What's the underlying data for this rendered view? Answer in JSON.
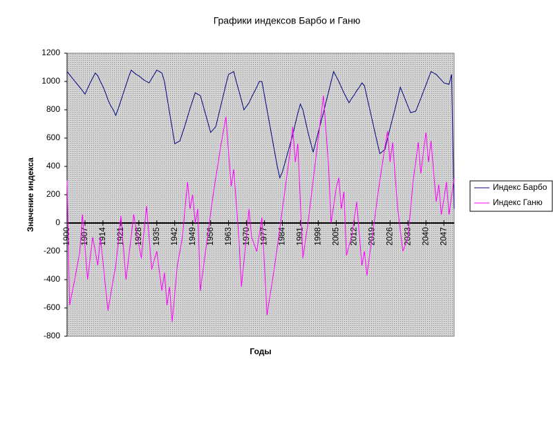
{
  "chart_data": {
    "type": "line",
    "title": "Графики индексов Барбо и Ганю",
    "x_label": "Годы",
    "y_label": "Значение индекса",
    "x": [
      1900,
      1901,
      1902,
      1903,
      1904,
      1905,
      1906,
      1907,
      1908,
      1909,
      1910,
      1911,
      1912,
      1913,
      1914,
      1915,
      1916,
      1917,
      1918,
      1919,
      1920,
      1921,
      1922,
      1923,
      1924,
      1925,
      1926,
      1927,
      1928,
      1929,
      1930,
      1931,
      1932,
      1933,
      1934,
      1935,
      1936,
      1937,
      1938,
      1939,
      1940,
      1941,
      1942,
      1943,
      1944,
      1945,
      1946,
      1947,
      1948,
      1949,
      1950,
      1951,
      1952,
      1953,
      1954,
      1955,
      1956,
      1957,
      1958,
      1959,
      1960,
      1961,
      1962,
      1963,
      1964,
      1965,
      1966,
      1967,
      1968,
      1969,
      1970,
      1971,
      1972,
      1973,
      1974,
      1975,
      1976,
      1977,
      1978,
      1979,
      1980,
      1981,
      1982,
      1983,
      1984,
      1985,
      1986,
      1987,
      1988,
      1989,
      1990,
      1991,
      1992,
      1993,
      1994,
      1995,
      1996,
      1997,
      1998,
      1999,
      2000,
      2001,
      2002,
      2003,
      2004,
      2005,
      2006,
      2007,
      2008,
      2009,
      2010,
      2011,
      2012,
      2013,
      2014,
      2015,
      2016,
      2017,
      2018,
      2019,
      2020,
      2021,
      2022,
      2023,
      2024,
      2025,
      2026,
      2027,
      2028,
      2029,
      2030,
      2031,
      2032,
      2033,
      2034,
      2035,
      2036,
      2037,
      2038,
      2039,
      2040,
      2041,
      2042,
      2043,
      2044,
      2045,
      2046,
      2047,
      2048,
      2049,
      2050,
      2051
    ],
    "series": [
      {
        "name": "Индекс Барбо",
        "color": "#000080",
        "values": [
          1070,
          1048,
          1025,
          1003,
          980,
          958,
          935,
          910,
          950,
          990,
          1025,
          1060,
          1040,
          1000,
          965,
          920,
          870,
          830,
          800,
          760,
          810,
          865,
          920,
          975,
          1030,
          1080,
          1065,
          1050,
          1040,
          1025,
          1010,
          1000,
          990,
          1020,
          1050,
          1080,
          1070,
          1060,
          1000,
          890,
          780,
          670,
          560,
          570,
          580,
          635,
          690,
          750,
          810,
          865,
          920,
          910,
          900,
          835,
          770,
          705,
          640,
          660,
          680,
          755,
          830,
          905,
          980,
          1050,
          1060,
          1070,
          1000,
          935,
          870,
          800,
          825,
          850,
          890,
          925,
          960,
          1000,
          1000,
          900,
          800,
          700,
          600,
          500,
          400,
          320,
          360,
          425,
          490,
          555,
          620,
          700,
          775,
          840,
          800,
          720,
          640,
          570,
          500,
          570,
          640,
          710,
          780,
          855,
          925,
          1000,
          1070,
          1035,
          1000,
          960,
          920,
          885,
          850,
          880,
          905,
          935,
          960,
          990,
          970,
          890,
          810,
          730,
          650,
          570,
          490,
          505,
          520,
          595,
          670,
          740,
          810,
          885,
          960,
          915,
          870,
          825,
          780,
          785,
          790,
          835,
          880,
          930,
          975,
          1025,
          1070,
          1060,
          1050,
          1030,
          1010,
          990,
          985,
          980,
          1050,
          100
        ]
      },
      {
        "name": "Индекс Ганю",
        "color": "#ff00ff",
        "values": [
          300,
          -580,
          -490,
          -400,
          -300,
          -200,
          60,
          -170,
          -400,
          -250,
          -100,
          -200,
          -300,
          -100,
          -270,
          -450,
          -620,
          -510,
          -400,
          -300,
          -130,
          50,
          -180,
          -400,
          -250,
          -100,
          60,
          -50,
          -150,
          -250,
          -60,
          120,
          -100,
          -330,
          -260,
          -200,
          -340,
          -480,
          -350,
          -580,
          -450,
          -700,
          -500,
          -300,
          -200,
          -100,
          100,
          290,
          100,
          200,
          0,
          100,
          -480,
          -340,
          -200,
          -70,
          70,
          200,
          320,
          430,
          550,
          650,
          750,
          500,
          260,
          380,
          140,
          -100,
          -450,
          -270,
          -90,
          100,
          -100,
          -150,
          -200,
          -80,
          40,
          -300,
          -650,
          -530,
          -420,
          -300,
          -170,
          -40,
          100,
          230,
          370,
          500,
          680,
          430,
          560,
          150,
          -250,
          -120,
          0,
          150,
          300,
          450,
          600,
          750,
          900,
          650,
          400,
          0,
          120,
          250,
          320,
          100,
          220,
          -230,
          -160,
          -100,
          30,
          150,
          -80,
          -300,
          -200,
          -370,
          -230,
          -100,
          30,
          170,
          300,
          420,
          540,
          650,
          430,
          570,
          330,
          100,
          -50,
          -200,
          -150,
          -100,
          100,
          300,
          430,
          570,
          350,
          500,
          640,
          430,
          580,
          360,
          150,
          270,
          60,
          170,
          290,
          60,
          190,
          320
        ]
      }
    ],
    "xlim": [
      1900,
      2051
    ],
    "xticks": [
      1900,
      1907,
      1914,
      1921,
      1928,
      1935,
      1942,
      1949,
      1956,
      1963,
      1970,
      1977,
      1984,
      1991,
      1998,
      2005,
      2012,
      2019,
      2026,
      2033,
      2040,
      2047
    ],
    "ylim": [
      -800,
      1200
    ],
    "yticks": [
      -800,
      -600,
      -400,
      -200,
      0,
      200,
      400,
      600,
      800,
      1000,
      1200
    ],
    "legend": "right"
  }
}
